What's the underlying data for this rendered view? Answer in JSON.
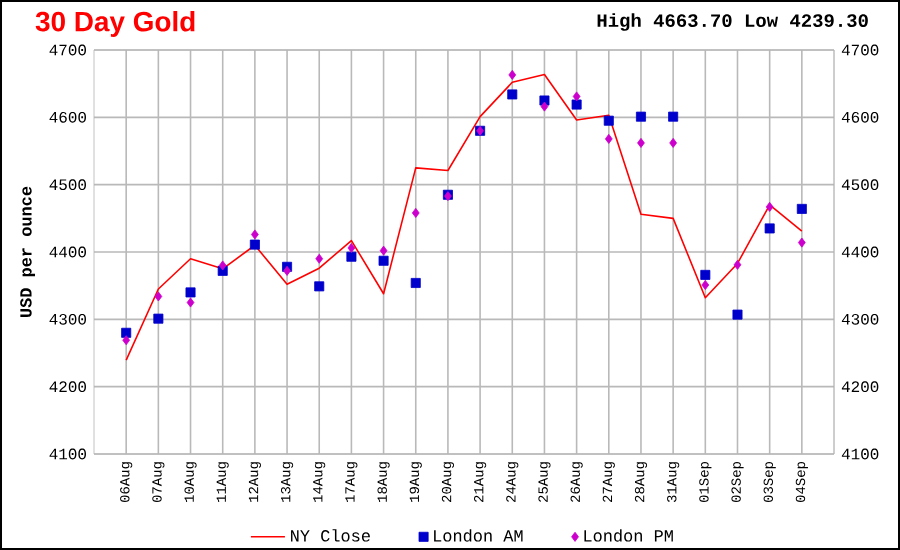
{
  "chart_data": {
    "type": "scatter",
    "title": "30 Day Gold",
    "ylabel": "USD per ounce",
    "annotations": [
      "High 4663.70 Low 4239.30"
    ],
    "categories": [
      "06Aug",
      "07Aug",
      "10Aug",
      "11Aug",
      "12Aug",
      "13Aug",
      "14Aug",
      "17Aug",
      "18Aug",
      "19Aug",
      "20Aug",
      "21Aug",
      "24Aug",
      "25Aug",
      "26Aug",
      "27Aug",
      "28Aug",
      "31Aug",
      "01Sep",
      "02Sep",
      "03Sep",
      "04Sep"
    ],
    "series": [
      {
        "name": "NY Close",
        "type": "line",
        "color": "#ff0000",
        "marker": "none",
        "values": [
          4239.3,
          4345,
          4390,
          4375,
          4410,
          4352,
          4376,
          4417,
          4338,
          4525,
          4521,
          4601,
          4652,
          4663.7,
          4596,
          4603,
          4456,
          4450,
          4332,
          4383,
          4470,
          4431
        ]
      },
      {
        "name": "London AM",
        "color": "#0000cc",
        "marker": "square",
        "values": [
          4280,
          4301,
          4340,
          4372,
          4411,
          4378,
          4349,
          4393,
          4387,
          4354,
          4485,
          4580,
          4634,
          4625,
          4619,
          4595,
          4601,
          4601,
          4366,
          4307,
          4435,
          4464
        ]
      },
      {
        "name": "London PM",
        "color": "#cc00cc",
        "marker": "diamond",
        "values": [
          4269,
          4334,
          4325,
          4380,
          4426,
          4372,
          4390,
          4406,
          4402,
          4458,
          4483,
          4580,
          4663,
          4616,
          4631,
          4568,
          4562,
          4562,
          4351,
          4381,
          4467,
          4414
        ]
      }
    ],
    "ylim": [
      4100,
      4700
    ],
    "yticks": [
      4100,
      4200,
      4300,
      4400,
      4500,
      4600,
      4700
    ],
    "y2lim": [
      4100,
      4700
    ],
    "y2ticks": [
      4100,
      4200,
      4300,
      4400,
      4500,
      4600,
      4700
    ],
    "grid": true,
    "legend": "bottom"
  }
}
